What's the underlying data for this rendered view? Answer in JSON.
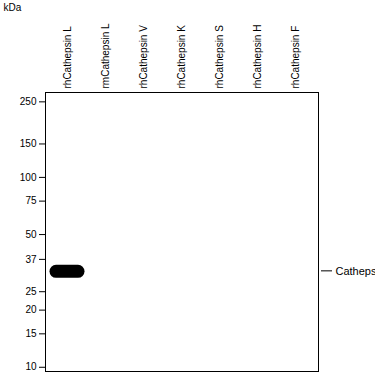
{
  "chart_data": {
    "type": "blot",
    "y_label": "kDa",
    "categories": [
      "rhCathepsin L",
      "rmCathepsin L",
      "rhCathepsin V",
      "rhCathepsin K",
      "rhCathepsin S",
      "rhCathepsin H",
      "rhCathepsin F"
    ],
    "values": [
      32,
      null,
      null,
      null,
      null,
      null,
      null
    ],
    "color": "#000000",
    "log": "y",
    "ylim": [
      9.5,
      280
    ],
    "yticks": [
      250,
      150,
      100,
      75,
      50,
      37,
      25,
      20,
      15,
      10
    ],
    "annotations": [
      {
        "text": "Cathepsin L",
        "y": 32
      }
    ]
  }
}
